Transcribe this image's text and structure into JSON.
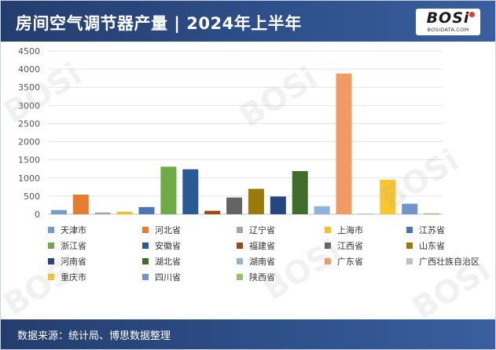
{
  "header": {
    "title": "房间空气调节器产量 | 2024年上半年"
  },
  "logo": {
    "main": "BOSi",
    "sub": "BOSIDATA.COM"
  },
  "footer": {
    "source": "数据来源：统计局、博思数据整理"
  },
  "watermarks": [
    "BOSi",
    "BOSi",
    "BOSi",
    "BOSi",
    "BOSi",
    "BOSi"
  ],
  "chart_data": {
    "type": "bar",
    "title": "房间空气调节器产量 | 2024年上半年",
    "xlabel": "",
    "ylabel": "",
    "ylim": [
      0,
      4500
    ],
    "yticks": [
      0,
      500,
      1000,
      1500,
      2000,
      2500,
      3000,
      3500,
      4000,
      4500
    ],
    "grid": true,
    "legend_position": "bottom",
    "series": [
      {
        "name": "天津市",
        "value": 115,
        "color": "#6f9bcf"
      },
      {
        "name": "河北省",
        "value": 540,
        "color": "#e67c32"
      },
      {
        "name": "辽宁省",
        "value": 50,
        "color": "#a6a6a6"
      },
      {
        "name": "上海市",
        "value": 70,
        "color": "#f6c02b"
      },
      {
        "name": "江苏省",
        "value": 200,
        "color": "#4a75b8"
      },
      {
        "name": "浙江省",
        "value": 1310,
        "color": "#6eaa46"
      },
      {
        "name": "安徽省",
        "value": 1240,
        "color": "#2a5a93"
      },
      {
        "name": "福建省",
        "value": 95,
        "color": "#9b4a17"
      },
      {
        "name": "江西省",
        "value": 460,
        "color": "#646464"
      },
      {
        "name": "山东省",
        "value": 700,
        "color": "#9a7a0a"
      },
      {
        "name": "河南省",
        "value": 490,
        "color": "#25467e"
      },
      {
        "name": "湖北省",
        "value": 1190,
        "color": "#3f6d29"
      },
      {
        "name": "湖南省",
        "value": 220,
        "color": "#8fb2dc"
      },
      {
        "name": "广东省",
        "value": 3880,
        "color": "#f19a63"
      },
      {
        "name": "广西壮族自治区",
        "value": 20,
        "color": "#bfbfbf"
      },
      {
        "name": "重庆市",
        "value": 950,
        "color": "#fcc52b"
      },
      {
        "name": "四川省",
        "value": 290,
        "color": "#6f95cc"
      },
      {
        "name": "陕西省",
        "value": 25,
        "color": "#93c26a"
      }
    ]
  }
}
